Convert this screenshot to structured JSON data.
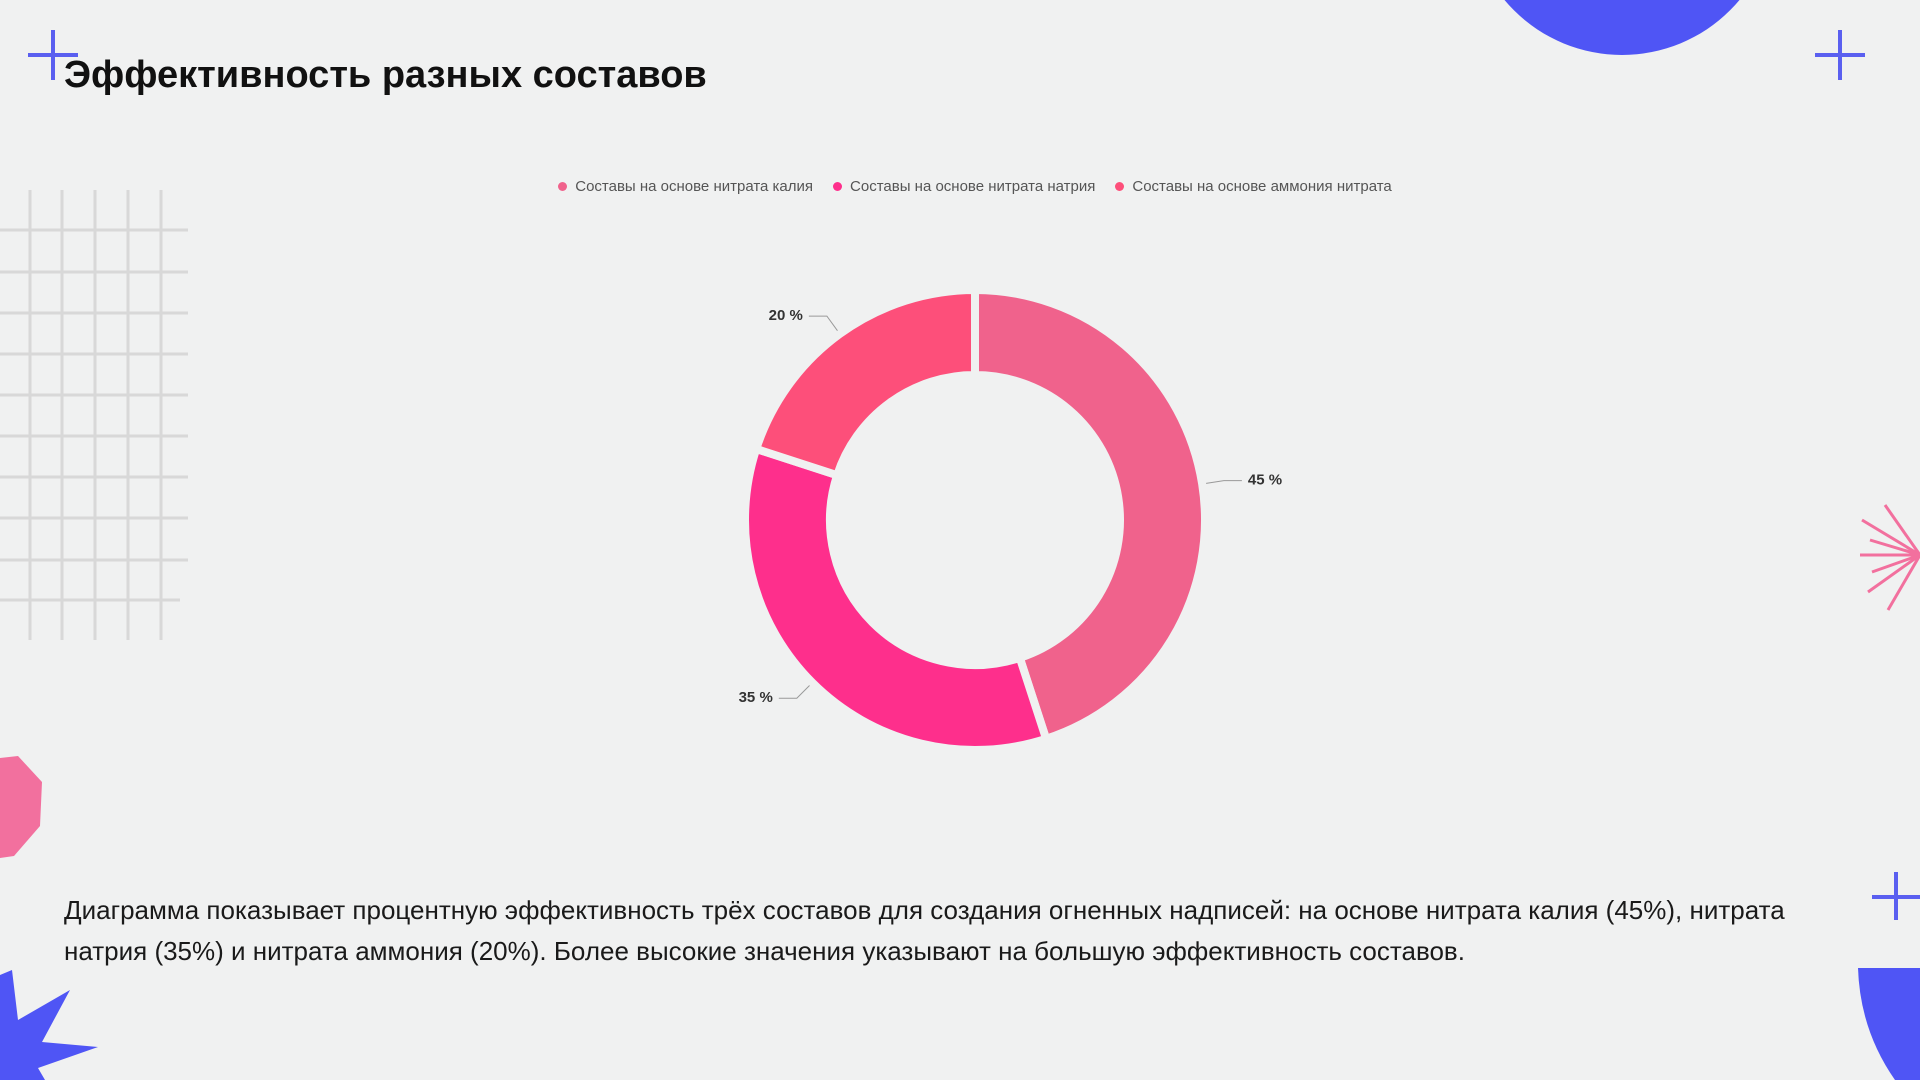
{
  "chart_data": {
    "type": "pie",
    "donut": true,
    "title": "Эффективность разных составов",
    "categories": [
      "Составы на основе нитрата калия",
      "Составы на основе нитрата натрия",
      "Составы на основе аммония нитрата"
    ],
    "values": [
      45,
      35,
      20
    ],
    "value_labels": [
      "45 %",
      "35 %",
      "20 %"
    ],
    "colors": [
      "#f0628c",
      "#fe2f8c",
      "#fd4f7a"
    ]
  },
  "description": "Диаграмма показывает процентную эффективность трёх составов для создания огненных надписей: на основе нитрата калия (45%), нитрата натрия (35%) и нитрата аммония (20%). Более высокие значения указывают на большую эффективность составов."
}
